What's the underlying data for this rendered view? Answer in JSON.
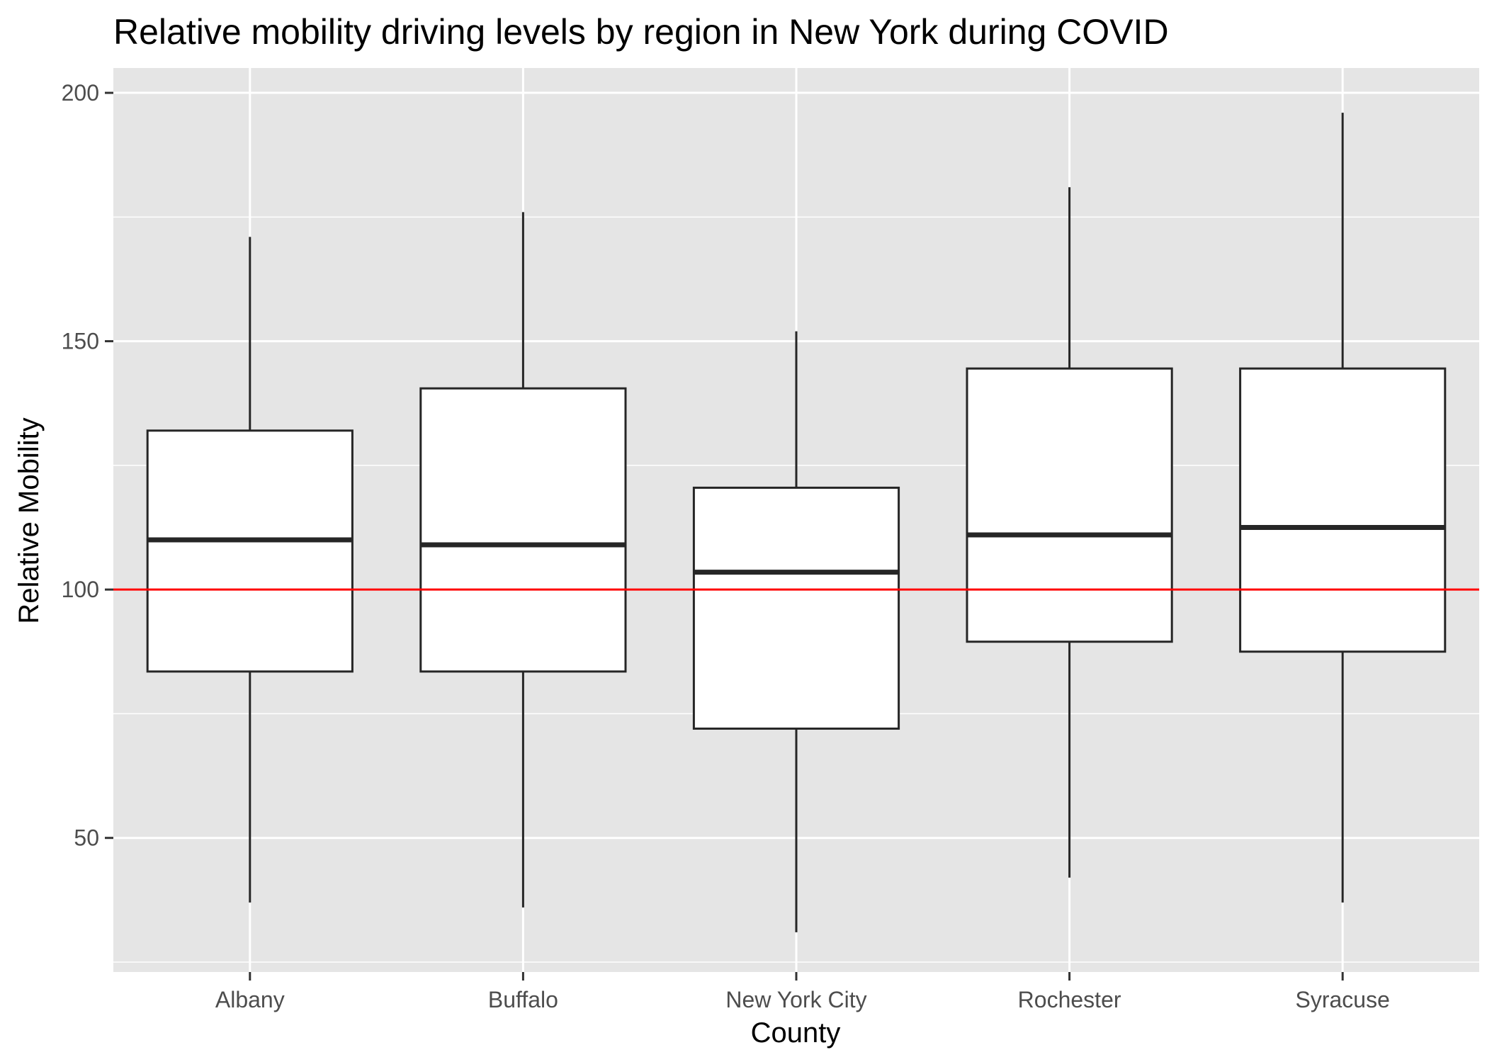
{
  "chart_data": {
    "type": "boxplot",
    "title": "Relative mobility driving levels by region in New York during COVID",
    "xlabel": "County",
    "ylabel": "Relative Mobility",
    "categories": [
      "Albany",
      "Buffalo",
      "New York City",
      "Rochester",
      "Syracuse"
    ],
    "boxes": [
      {
        "category": "Albany",
        "min": 37,
        "q1": 83.5,
        "median": 110,
        "q3": 132,
        "max": 171
      },
      {
        "category": "Buffalo",
        "min": 36,
        "q1": 83.5,
        "median": 109,
        "q3": 140.5,
        "max": 176
      },
      {
        "category": "New York City",
        "min": 31,
        "q1": 72,
        "median": 103.5,
        "q3": 120.5,
        "max": 152
      },
      {
        "category": "Rochester",
        "min": 42,
        "q1": 89.5,
        "median": 111,
        "q3": 144.5,
        "max": 181
      },
      {
        "category": "Syracuse",
        "min": 37,
        "q1": 87.5,
        "median": 112.5,
        "q3": 144.5,
        "max": 196
      }
    ],
    "reference_line": {
      "y": 100,
      "color": "#ff0000"
    },
    "ylim": [
      23,
      205
    ],
    "yticks": [
      50,
      100,
      150,
      200
    ],
    "y_minor_gridlines": [
      25,
      75,
      125,
      175
    ],
    "grid": true,
    "colors": {
      "panel": "#e5e5e5",
      "grid": "#ffffff",
      "box_fill": "#ffffff",
      "box_stroke": "#262626",
      "tick_label": "#4d4d4d"
    }
  }
}
